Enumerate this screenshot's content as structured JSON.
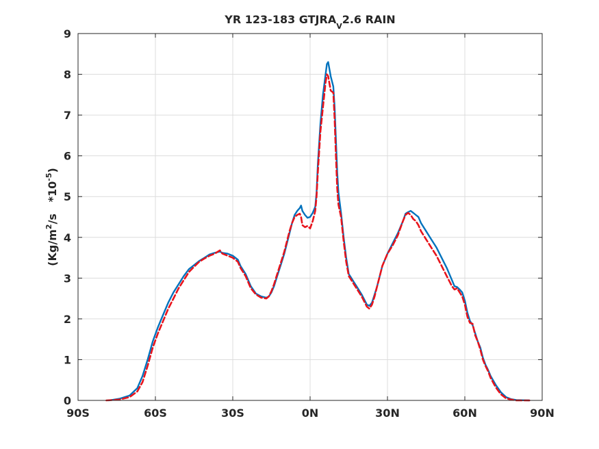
{
  "chart_data": {
    "type": "line",
    "title": {
      "main": "YR 123-183 GTJRA",
      "sub": "V",
      "tail": "2.6 RAIN"
    },
    "ylabel": {
      "a": "(Kg/m",
      "sup1": "2",
      "b": "/s   *10",
      "sup2": "-5",
      "c": ")"
    },
    "xlabel": "",
    "xlim": [
      -90,
      90
    ],
    "ylim": [
      0,
      9
    ],
    "x_ticks": [
      -90,
      -60,
      -30,
      0,
      30,
      60,
      90
    ],
    "x_tick_labels": [
      "90S",
      "60S",
      "30S",
      "0N",
      "30N",
      "60N",
      "90N"
    ],
    "y_ticks": [
      0,
      1,
      2,
      3,
      4,
      5,
      6,
      7,
      8,
      9
    ],
    "y_tick_labels": [
      "0",
      "1",
      "2",
      "3",
      "4",
      "5",
      "6",
      "7",
      "8",
      "9"
    ],
    "grid": true,
    "series": [
      {
        "color": "#0072bd",
        "style": "solid",
        "points": [
          [
            -78,
            0
          ],
          [
            -74,
            0.04
          ],
          [
            -70,
            0.12
          ],
          [
            -67,
            0.3
          ],
          [
            -65,
            0.6
          ],
          [
            -63,
            1.0
          ],
          [
            -61,
            1.45
          ],
          [
            -59,
            1.8
          ],
          [
            -57,
            2.1
          ],
          [
            -55,
            2.4
          ],
          [
            -53,
            2.65
          ],
          [
            -51,
            2.85
          ],
          [
            -49,
            3.05
          ],
          [
            -47,
            3.22
          ],
          [
            -45,
            3.32
          ],
          [
            -43,
            3.42
          ],
          [
            -41,
            3.5
          ],
          [
            -39,
            3.58
          ],
          [
            -37,
            3.62
          ],
          [
            -35,
            3.65
          ],
          [
            -34,
            3.62
          ],
          [
            -32,
            3.6
          ],
          [
            -30,
            3.55
          ],
          [
            -28,
            3.45
          ],
          [
            -27,
            3.3
          ],
          [
            -25,
            3.1
          ],
          [
            -23,
            2.8
          ],
          [
            -21,
            2.62
          ],
          [
            -19,
            2.55
          ],
          [
            -17,
            2.52
          ],
          [
            -16,
            2.55
          ],
          [
            -15,
            2.65
          ],
          [
            -14,
            2.8
          ],
          [
            -13,
            3.0
          ],
          [
            -12,
            3.2
          ],
          [
            -11,
            3.4
          ],
          [
            -10,
            3.6
          ],
          [
            -9,
            3.85
          ],
          [
            -8,
            4.1
          ],
          [
            -7,
            4.35
          ],
          [
            -6,
            4.55
          ],
          [
            -5,
            4.65
          ],
          [
            -4,
            4.72
          ],
          [
            -3.5,
            4.78
          ],
          [
            -3,
            4.65
          ],
          [
            -2,
            4.55
          ],
          [
            -1,
            4.48
          ],
          [
            0,
            4.5
          ],
          [
            1,
            4.6
          ],
          [
            2,
            4.75
          ],
          [
            2.5,
            5.1
          ],
          [
            3,
            5.8
          ],
          [
            4,
            6.8
          ],
          [
            5,
            7.5
          ],
          [
            6,
            8.0
          ],
          [
            6.5,
            8.25
          ],
          [
            7,
            8.3
          ],
          [
            8,
            7.95
          ],
          [
            9,
            7.7
          ],
          [
            9.5,
            7.2
          ],
          [
            10,
            6.4
          ],
          [
            10.5,
            5.6
          ],
          [
            11,
            5.1
          ],
          [
            12,
            4.6
          ],
          [
            13,
            4.0
          ],
          [
            14,
            3.5
          ],
          [
            15,
            3.1
          ],
          [
            16,
            3.0
          ],
          [
            17,
            2.9
          ],
          [
            18,
            2.8
          ],
          [
            20,
            2.6
          ],
          [
            22,
            2.35
          ],
          [
            23,
            2.32
          ],
          [
            24,
            2.4
          ],
          [
            25,
            2.6
          ],
          [
            26,
            2.8
          ],
          [
            27,
            3.05
          ],
          [
            28,
            3.3
          ],
          [
            30,
            3.6
          ],
          [
            32,
            3.85
          ],
          [
            34,
            4.1
          ],
          [
            36,
            4.4
          ],
          [
            37,
            4.58
          ],
          [
            38,
            4.62
          ],
          [
            39,
            4.65
          ],
          [
            40,
            4.6
          ],
          [
            41,
            4.55
          ],
          [
            42,
            4.5
          ],
          [
            43,
            4.35
          ],
          [
            45,
            4.15
          ],
          [
            47,
            3.95
          ],
          [
            49,
            3.75
          ],
          [
            51,
            3.5
          ],
          [
            53,
            3.25
          ],
          [
            55,
            2.95
          ],
          [
            56,
            2.8
          ],
          [
            57,
            2.78
          ],
          [
            58,
            2.72
          ],
          [
            59,
            2.65
          ],
          [
            60,
            2.45
          ],
          [
            61,
            2.15
          ],
          [
            62,
            1.95
          ],
          [
            63,
            1.85
          ],
          [
            64,
            1.65
          ],
          [
            65,
            1.45
          ],
          [
            66,
            1.3
          ],
          [
            67,
            1.05
          ],
          [
            68,
            0.88
          ],
          [
            69,
            0.75
          ],
          [
            70,
            0.6
          ],
          [
            72,
            0.38
          ],
          [
            74,
            0.2
          ],
          [
            76,
            0.08
          ],
          [
            78,
            0.03
          ],
          [
            80,
            0.01
          ],
          [
            85,
            0
          ]
        ]
      },
      {
        "color": "#e8141c",
        "style": "dashed",
        "points": [
          [
            -79,
            0
          ],
          [
            -74,
            0.02
          ],
          [
            -70,
            0.08
          ],
          [
            -67,
            0.22
          ],
          [
            -65,
            0.45
          ],
          [
            -63,
            0.85
          ],
          [
            -61,
            1.3
          ],
          [
            -59,
            1.65
          ],
          [
            -57,
            1.95
          ],
          [
            -55,
            2.25
          ],
          [
            -53,
            2.5
          ],
          [
            -51,
            2.75
          ],
          [
            -49,
            2.95
          ],
          [
            -47,
            3.15
          ],
          [
            -45,
            3.28
          ],
          [
            -43,
            3.4
          ],
          [
            -41,
            3.48
          ],
          [
            -39,
            3.55
          ],
          [
            -37,
            3.6
          ],
          [
            -35,
            3.68
          ],
          [
            -34,
            3.6
          ],
          [
            -32,
            3.55
          ],
          [
            -30,
            3.5
          ],
          [
            -28,
            3.4
          ],
          [
            -27,
            3.25
          ],
          [
            -25,
            3.05
          ],
          [
            -23,
            2.75
          ],
          [
            -21,
            2.6
          ],
          [
            -19,
            2.52
          ],
          [
            -17,
            2.5
          ],
          [
            -16,
            2.55
          ],
          [
            -15,
            2.68
          ],
          [
            -14,
            2.85
          ],
          [
            -13,
            3.05
          ],
          [
            -12,
            3.25
          ],
          [
            -11,
            3.45
          ],
          [
            -10,
            3.65
          ],
          [
            -9,
            3.9
          ],
          [
            -8,
            4.15
          ],
          [
            -7,
            4.35
          ],
          [
            -6,
            4.5
          ],
          [
            -5,
            4.55
          ],
          [
            -4,
            4.58
          ],
          [
            -3.5,
            4.5
          ],
          [
            -3,
            4.3
          ],
          [
            -2,
            4.25
          ],
          [
            -1,
            4.28
          ],
          [
            0,
            4.22
          ],
          [
            1,
            4.4
          ],
          [
            2,
            4.65
          ],
          [
            2.5,
            5.0
          ],
          [
            3,
            5.6
          ],
          [
            4,
            6.6
          ],
          [
            5,
            7.2
          ],
          [
            6,
            7.8
          ],
          [
            6.5,
            8.0
          ],
          [
            7,
            7.95
          ],
          [
            8,
            7.6
          ],
          [
            9,
            7.55
          ],
          [
            9.5,
            6.9
          ],
          [
            10,
            6.0
          ],
          [
            10.5,
            5.2
          ],
          [
            11,
            4.8
          ],
          [
            12,
            4.5
          ],
          [
            13,
            3.9
          ],
          [
            14,
            3.4
          ],
          [
            15,
            3.05
          ],
          [
            16,
            2.95
          ],
          [
            17,
            2.85
          ],
          [
            18,
            2.75
          ],
          [
            20,
            2.55
          ],
          [
            22,
            2.3
          ],
          [
            23,
            2.25
          ],
          [
            24,
            2.35
          ],
          [
            25,
            2.55
          ],
          [
            26,
            2.8
          ],
          [
            27,
            3.05
          ],
          [
            28,
            3.3
          ],
          [
            30,
            3.6
          ],
          [
            32,
            3.8
          ],
          [
            34,
            4.05
          ],
          [
            36,
            4.4
          ],
          [
            37,
            4.55
          ],
          [
            38,
            4.6
          ],
          [
            39,
            4.55
          ],
          [
            40,
            4.45
          ],
          [
            41,
            4.4
          ],
          [
            42,
            4.3
          ],
          [
            43,
            4.15
          ],
          [
            45,
            3.95
          ],
          [
            47,
            3.75
          ],
          [
            49,
            3.55
          ],
          [
            51,
            3.3
          ],
          [
            53,
            3.05
          ],
          [
            55,
            2.8
          ],
          [
            56,
            2.72
          ],
          [
            57,
            2.75
          ],
          [
            58,
            2.65
          ],
          [
            59,
            2.55
          ],
          [
            60,
            2.35
          ],
          [
            61,
            2.05
          ],
          [
            62,
            1.9
          ],
          [
            63,
            1.88
          ],
          [
            64,
            1.6
          ],
          [
            65,
            1.45
          ],
          [
            66,
            1.25
          ],
          [
            67,
            1.0
          ],
          [
            68,
            0.85
          ],
          [
            69,
            0.72
          ],
          [
            70,
            0.55
          ],
          [
            72,
            0.32
          ],
          [
            74,
            0.15
          ],
          [
            76,
            0.05
          ],
          [
            78,
            0.02
          ],
          [
            80,
            0
          ],
          [
            85,
            0
          ]
        ]
      }
    ]
  }
}
